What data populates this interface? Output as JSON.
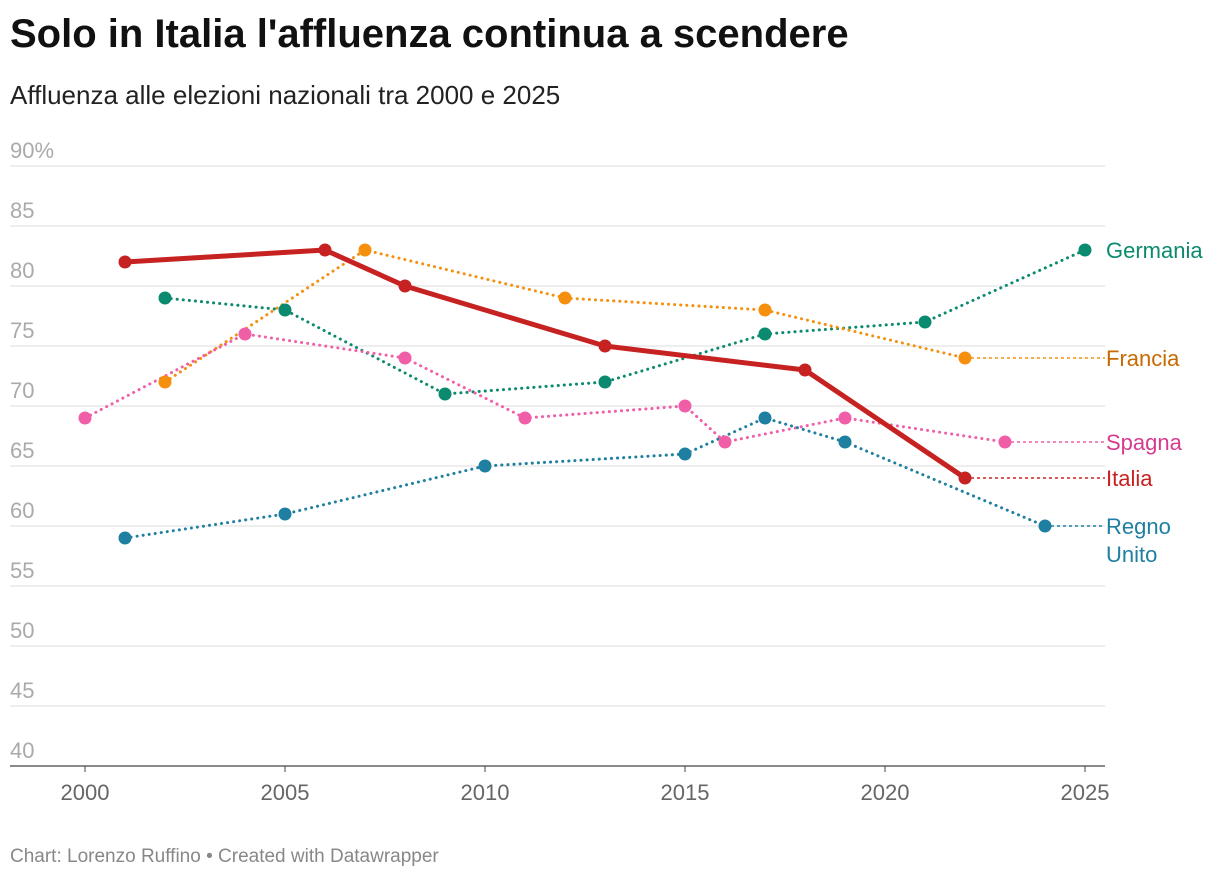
{
  "header": {
    "title": "Solo in Italia l'affluenza continua a scendere",
    "subtitle": "Affluenza alle elezioni nazionali tra 2000 e 2025"
  },
  "footer": {
    "credit": "Chart: Lorenzo Ruffino • Created with Datawrapper"
  },
  "chart_data": {
    "type": "line",
    "title": "Solo in Italia l'affluenza continua a scendere",
    "subtitle": "Affluenza alle elezioni nazionali tra 2000 e 2025",
    "xlabel": "",
    "ylabel": "",
    "xlim": [
      2000,
      2025
    ],
    "ylim": [
      40,
      90
    ],
    "x_ticks": [
      "2000",
      "2005",
      "2010",
      "2015",
      "2020",
      "2025"
    ],
    "y_ticks": [
      "40",
      "45",
      "50",
      "55",
      "60",
      "65",
      "70",
      "75",
      "80",
      "85",
      "90%"
    ],
    "grid": true,
    "legend": "direct labels at right end of lines",
    "series": [
      {
        "name": "Germania",
        "color": "#0b8a6f",
        "style": "dotted",
        "points": [
          [
            2002,
            79
          ],
          [
            2005,
            78
          ],
          [
            2009,
            71
          ],
          [
            2013,
            72
          ],
          [
            2017,
            76
          ],
          [
            2021,
            77
          ],
          [
            2025,
            83
          ]
        ],
        "label": "Germania"
      },
      {
        "name": "Francia",
        "color": "#f5900e",
        "label_color": "#c96a00",
        "style": "dotted",
        "points": [
          [
            2002,
            72
          ],
          [
            2007,
            83
          ],
          [
            2012,
            79
          ],
          [
            2017,
            78
          ],
          [
            2022,
            74
          ]
        ],
        "extend_to": 2025,
        "label": "Francia"
      },
      {
        "name": "Spagna",
        "color": "#f05ea8",
        "label_color": "#d63b8e",
        "style": "dotted",
        "points": [
          [
            2000,
            69
          ],
          [
            2004,
            76
          ],
          [
            2008,
            74
          ],
          [
            2011,
            69
          ],
          [
            2015,
            70
          ],
          [
            2016,
            67
          ],
          [
            2019,
            69
          ],
          [
            2023,
            67
          ]
        ],
        "extend_to": 2025,
        "label": "Spagna"
      },
      {
        "name": "Italia",
        "color": "#c72222",
        "style": "solid",
        "points": [
          [
            2001,
            82
          ],
          [
            2006,
            83
          ],
          [
            2008,
            80
          ],
          [
            2013,
            75
          ],
          [
            2018,
            73
          ],
          [
            2022,
            64
          ]
        ],
        "extend_to": 2025,
        "label": "Italia"
      },
      {
        "name": "Regno Unito",
        "color": "#1f7fa0",
        "style": "dotted",
        "points": [
          [
            2001,
            59
          ],
          [
            2005,
            61
          ],
          [
            2010,
            65
          ],
          [
            2015,
            66
          ],
          [
            2017,
            69
          ],
          [
            2019,
            67
          ],
          [
            2024,
            60
          ]
        ],
        "extend_to": 2025,
        "label_lines": [
          "Regno",
          "Unito"
        ]
      }
    ]
  }
}
